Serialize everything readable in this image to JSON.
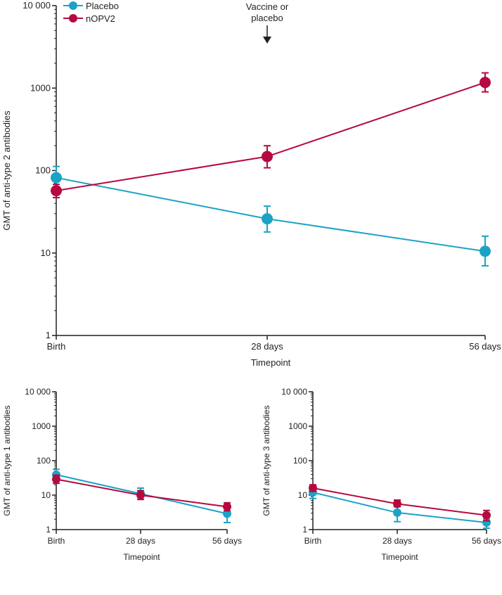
{
  "colors": {
    "placebo": "#1ba3c6",
    "nOPV2": "#b5093f",
    "axis": "#231f20"
  },
  "legend": [
    {
      "name": "Placebo",
      "color_key": "placebo"
    },
    {
      "name": "nOPV2",
      "color_key": "nOPV2"
    }
  ],
  "annotation": {
    "line1": "Vaccine or",
    "line2": "placebo",
    "at": "28 days"
  },
  "chart_data": [
    {
      "type": "line",
      "yscale": "log",
      "ylabel": "GMT of anti-type 2 antibodies",
      "xlabel": "Timepoint",
      "categories": [
        "Birth",
        "28 days",
        "56 days"
      ],
      "yticks": [
        1,
        10,
        100,
        1000,
        10000
      ],
      "ytick_labels": [
        "1",
        "10",
        "100",
        "1000",
        "10 000"
      ],
      "ylim": [
        1,
        10000
      ],
      "series": [
        {
          "name": "Placebo",
          "values": [
            82,
            26,
            10.5
          ],
          "lower": [
            60,
            18,
            7
          ],
          "upper": [
            112,
            37,
            16
          ]
        },
        {
          "name": "nOPV2",
          "values": [
            57,
            148,
            1170
          ],
          "lower": [
            47,
            108,
            900
          ],
          "upper": [
            68,
            200,
            1530
          ]
        }
      ]
    },
    {
      "type": "line",
      "yscale": "log",
      "ylabel": "GMT of anti-type 1 antibodies",
      "xlabel": "Timepoint",
      "categories": [
        "Birth",
        "28 days",
        "56 days"
      ],
      "yticks": [
        1,
        10,
        100,
        1000,
        10000
      ],
      "ytick_labels": [
        "1",
        "10",
        "100",
        "1000",
        "10 000"
      ],
      "ylim": [
        1,
        10000
      ],
      "series": [
        {
          "name": "Placebo",
          "values": [
            39,
            11,
            2.9
          ],
          "lower": [
            28,
            7.5,
            1.6
          ],
          "upper": [
            56,
            16,
            5
          ]
        },
        {
          "name": "nOPV2",
          "values": [
            29,
            10,
            4.6
          ],
          "lower": [
            22,
            7.5,
            3.5
          ],
          "upper": [
            38,
            13.5,
            6
          ]
        }
      ]
    },
    {
      "type": "line",
      "yscale": "log",
      "ylabel": "GMT of anti-type 3 antibodies",
      "xlabel": "Timepoint",
      "categories": [
        "Birth",
        "28 days",
        "56 days"
      ],
      "yticks": [
        1,
        10,
        100,
        1000,
        10000
      ],
      "ytick_labels": [
        "1",
        "10",
        "100",
        "1000",
        "10 000"
      ],
      "ylim": [
        1,
        10000
      ],
      "series": [
        {
          "name": "Placebo",
          "values": [
            12,
            3.1,
            1.6
          ],
          "lower": [
            8,
            1.7,
            1.1
          ],
          "upper": [
            17,
            5.5,
            2
          ]
        },
        {
          "name": "nOPV2",
          "values": [
            16,
            5.6,
            2.6
          ],
          "lower": [
            13,
            4.6,
            1.8
          ],
          "upper": [
            20,
            7.2,
            3.6
          ]
        }
      ]
    }
  ]
}
